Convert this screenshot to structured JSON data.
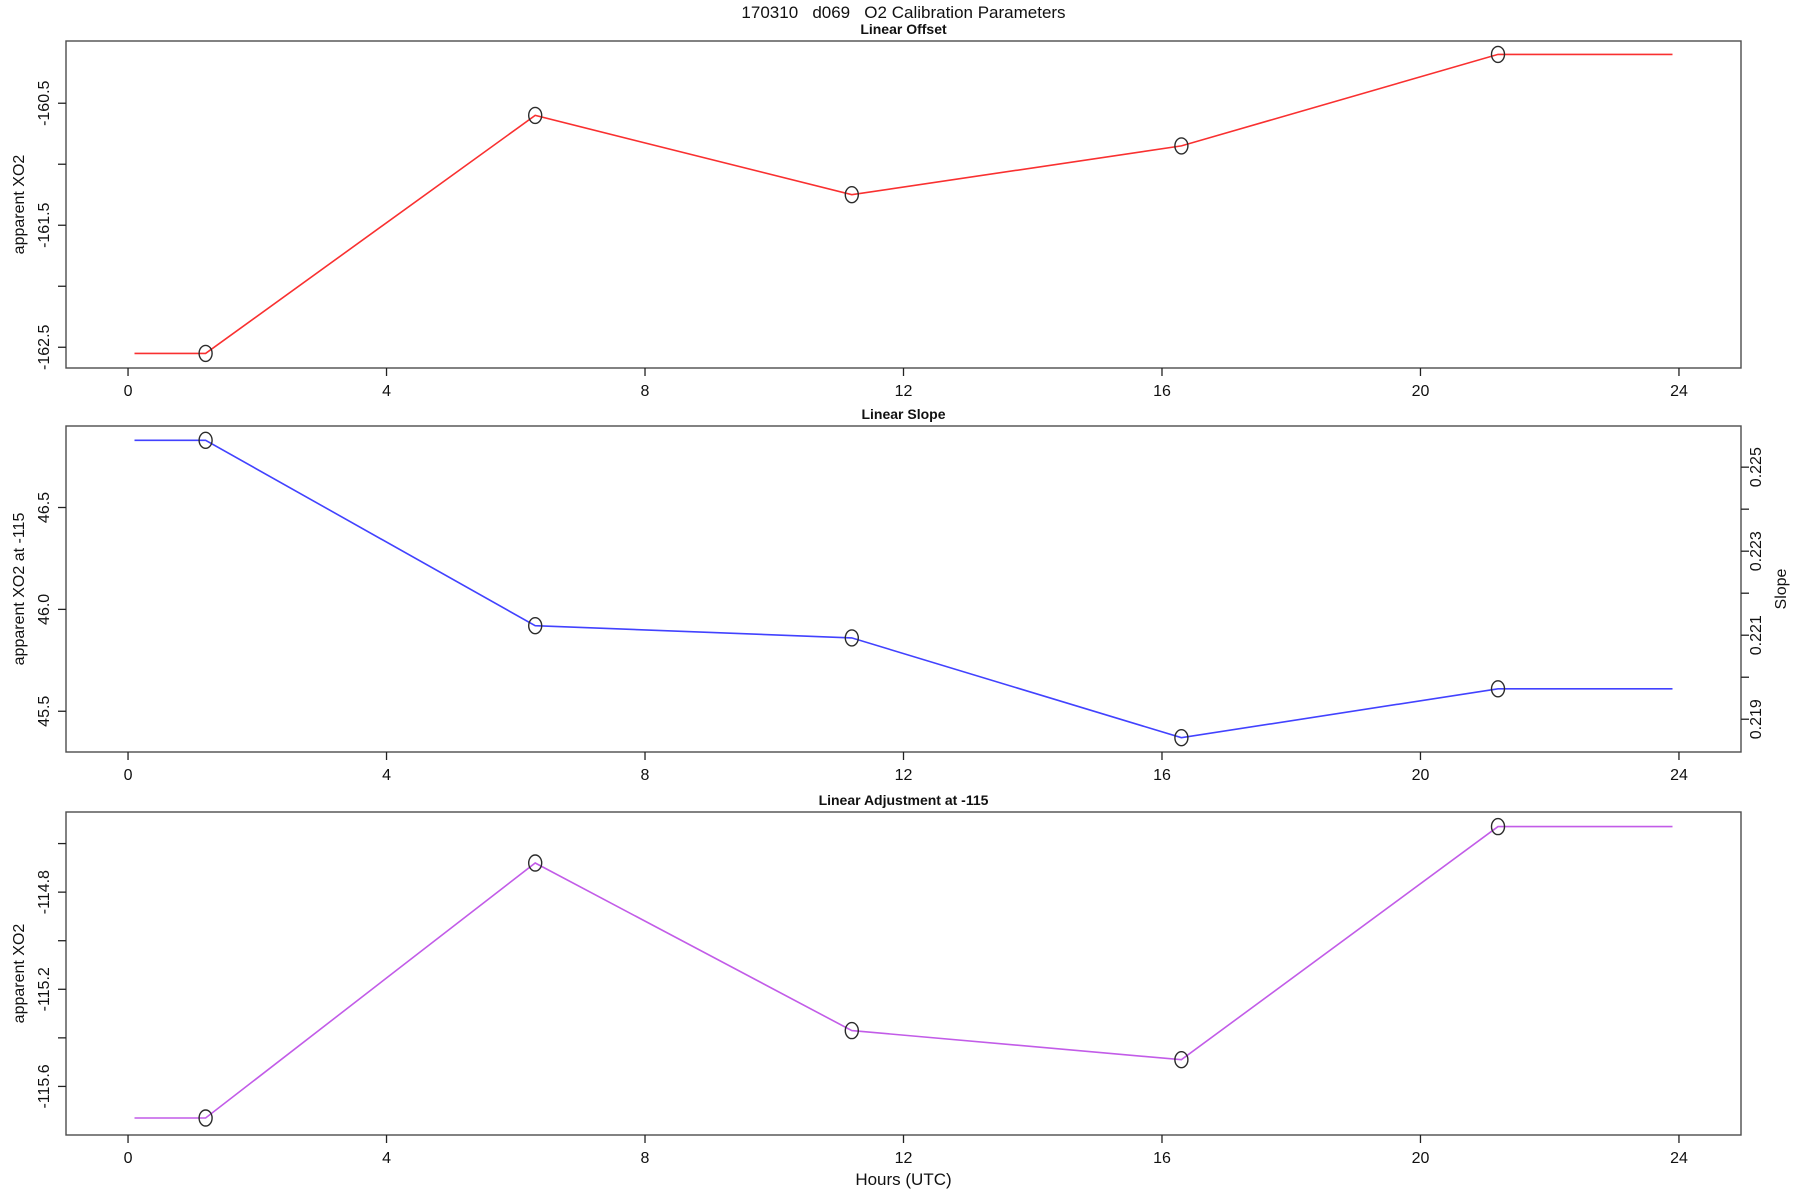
{
  "title": "170310   d069   O2 Calibration Parameters",
  "xlabel": "Hours (UTC)",
  "x_axis": {
    "ticks": [
      0,
      4,
      8,
      12,
      16,
      20,
      24
    ],
    "tick_labels": [
      "0",
      "4",
      "8",
      "12",
      "16",
      "20",
      "24"
    ],
    "xlim": [
      -0.96,
      24.96
    ]
  },
  "marker": {
    "shape": "open-circle",
    "color": "#2b2b2b"
  },
  "chart_data": [
    {
      "type": "line",
      "title": "Linear Offset",
      "ylabel": "apparent XO2",
      "line_color": "#f93030",
      "x": [
        1.2,
        6.3,
        11.2,
        16.3,
        21.2
      ],
      "y": [
        -162.55,
        -160.6,
        -161.25,
        -160.85,
        -160.1
      ],
      "line_start_x": 0.1,
      "line_end_x": 23.9,
      "ylim": [
        -162.67,
        -159.99
      ],
      "yticks": [
        -162.5,
        -162.0,
        -161.5,
        -161.0,
        -160.5
      ],
      "ytick_labels": [
        "-162.5",
        "",
        "-161.5",
        "",
        "-160.5"
      ],
      "grid": false
    },
    {
      "type": "line",
      "title": "Linear Slope",
      "ylabel": "apparent XO2 at -115",
      "ylabel_right": "Slope",
      "line_color": "#4242ff",
      "x": [
        1.2,
        6.3,
        11.2,
        16.3,
        21.2
      ],
      "y": [
        46.83,
        45.92,
        45.86,
        45.37,
        45.61
      ],
      "y_right_values": [
        0.2256,
        0.2212,
        0.2209,
        0.2185,
        0.2197
      ],
      "line_start_x": 0.1,
      "line_end_x": 23.9,
      "ylim": [
        45.3,
        46.9
      ],
      "yticks": [
        45.5,
        46.0,
        46.5
      ],
      "ytick_labels": [
        "45.5",
        "46.0",
        "46.5"
      ],
      "ylim_right": [
        0.21822,
        0.22598
      ],
      "yticks_right": [
        0.219,
        0.22,
        0.221,
        0.222,
        0.223,
        0.224,
        0.225
      ],
      "ytick_labels_right": [
        "0.219",
        "",
        "0.221",
        "",
        "0.223",
        "",
        "0.225"
      ],
      "grid": false
    },
    {
      "type": "line",
      "title": "Linear Adjustment at -115",
      "ylabel": "apparent XO2",
      "line_color": "#c25ce8",
      "x": [
        1.2,
        6.3,
        11.2,
        16.3,
        21.2
      ],
      "y": [
        -115.73,
        -114.68,
        -115.37,
        -115.49,
        -114.53
      ],
      "line_start_x": 0.1,
      "line_end_x": 23.9,
      "ylim": [
        -115.8,
        -114.47
      ],
      "yticks": [
        -115.6,
        -115.4,
        -115.2,
        -115.0,
        -114.8,
        -114.6
      ],
      "ytick_labels": [
        "-115.6",
        "",
        "-115.2",
        "",
        "-114.8",
        ""
      ],
      "grid": false
    }
  ]
}
